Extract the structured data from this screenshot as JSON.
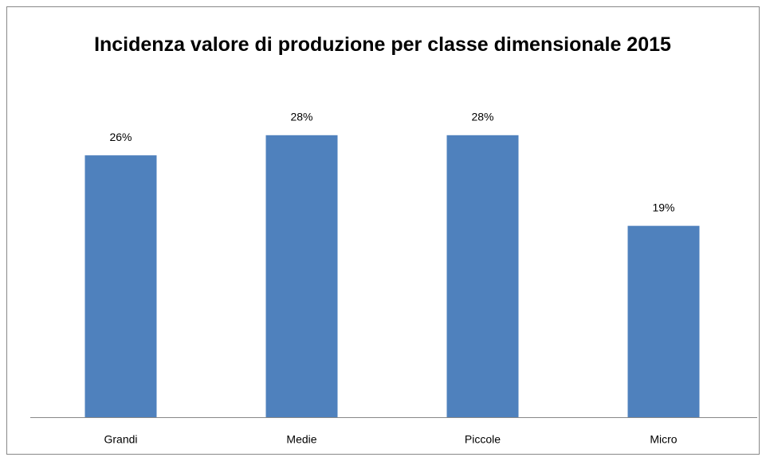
{
  "chart_data": {
    "type": "bar",
    "title": "Incidenza valore di produzione per classe dimensionale 2015",
    "categories": [
      "Grandi",
      "Medie",
      "Piccole",
      "Micro"
    ],
    "values": [
      26,
      28,
      28,
      19
    ],
    "value_labels": [
      "26%",
      "28%",
      "28%",
      "19%"
    ],
    "color": "#4f81bd"
  }
}
